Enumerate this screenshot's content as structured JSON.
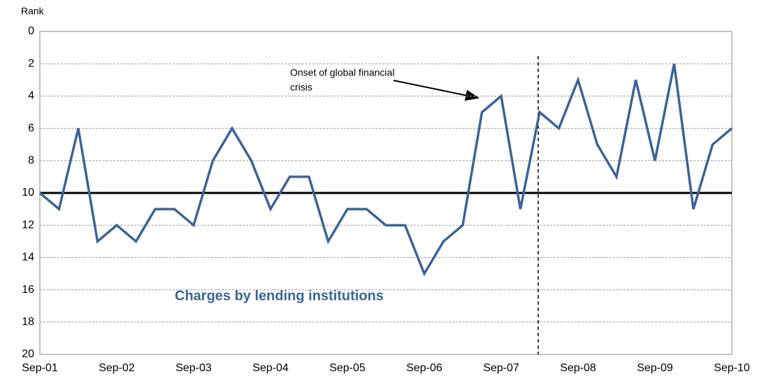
{
  "chart_data": {
    "type": "line",
    "y_label": "Rank",
    "annotation": "Charges by lending institutions",
    "event_label": [
      "Onset of global financial",
      "crisis"
    ],
    "categories": [
      "Sep-01",
      null,
      null,
      null,
      "Sep-02",
      null,
      null,
      null,
      "Sep-03",
      null,
      null,
      null,
      "Sep-04",
      null,
      null,
      null,
      "Sep-05",
      null,
      null,
      null,
      "Sep-06",
      null,
      null,
      null,
      "Sep-07",
      null,
      null,
      null,
      "Sep-08",
      null,
      null,
      null,
      "Sep-09",
      null,
      null,
      null,
      "Sep-10"
    ],
    "series": [
      {
        "name": "Charges by lending institutions",
        "color": "#3c6495",
        "values": [
          10,
          11,
          6,
          13,
          12,
          13,
          11,
          11,
          12,
          8,
          6,
          8,
          11,
          9,
          9,
          13,
          11,
          11,
          12,
          12,
          15,
          13,
          12,
          5,
          4,
          11,
          5,
          6,
          3,
          7,
          9,
          3,
          8,
          2,
          11,
          7,
          6
        ]
      }
    ],
    "reference_line": 10,
    "ylim": [
      20,
      0
    ],
    "yticks": [
      0,
      2,
      4,
      6,
      8,
      10,
      12,
      14,
      16,
      18,
      20
    ],
    "grid": true
  }
}
